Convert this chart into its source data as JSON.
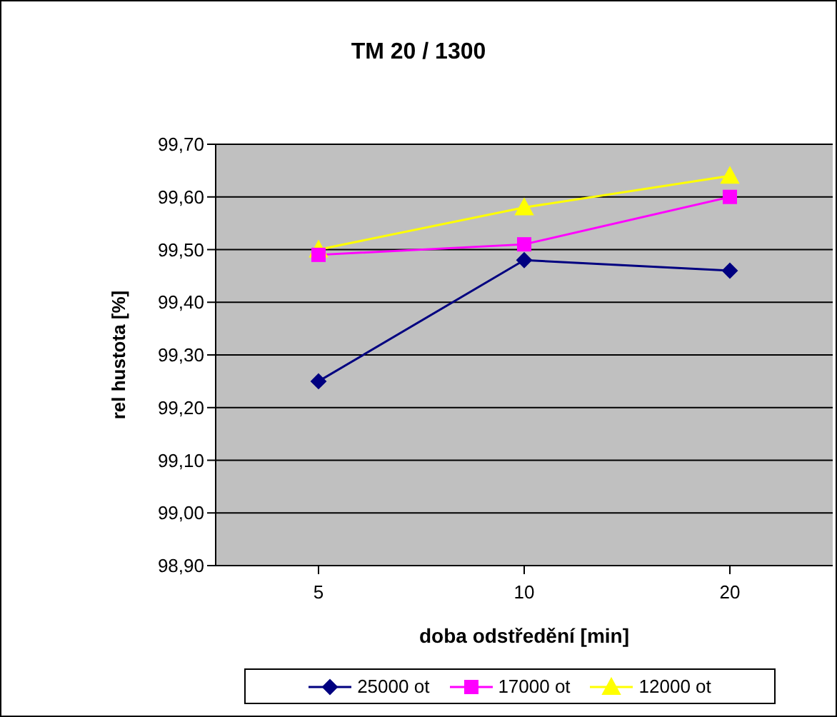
{
  "chart_data": {
    "type": "line",
    "title": "TM 20 / 1300",
    "xlabel": "doba odstředění [min]",
    "ylabel": "rel hustota [%]",
    "categories": [
      "5",
      "10",
      "20"
    ],
    "series": [
      {
        "name": "25000 ot",
        "color": "#000080",
        "marker": "diamond",
        "values": [
          99.25,
          99.48,
          99.46
        ]
      },
      {
        "name": "17000 ot",
        "color": "#ff00ff",
        "marker": "square",
        "values": [
          99.49,
          99.51,
          99.6
        ]
      },
      {
        "name": "12000 ot",
        "color": "#ffff00",
        "marker": "triangle",
        "values": [
          99.5,
          99.58,
          99.64
        ]
      }
    ],
    "ylim": [
      98.9,
      99.7
    ],
    "yticks": [
      {
        "value": 98.9,
        "label": "98,90"
      },
      {
        "value": 99.0,
        "label": "99,00"
      },
      {
        "value": 99.1,
        "label": "99,10"
      },
      {
        "value": 99.2,
        "label": "99,20"
      },
      {
        "value": 99.3,
        "label": "99,30"
      },
      {
        "value": 99.4,
        "label": "99,40"
      },
      {
        "value": 99.5,
        "label": "99,50"
      },
      {
        "value": 99.6,
        "label": "99,60"
      },
      {
        "value": 99.7,
        "label": "99,70"
      }
    ],
    "grid": "y",
    "legend": "bottom",
    "line_style": "solid"
  }
}
